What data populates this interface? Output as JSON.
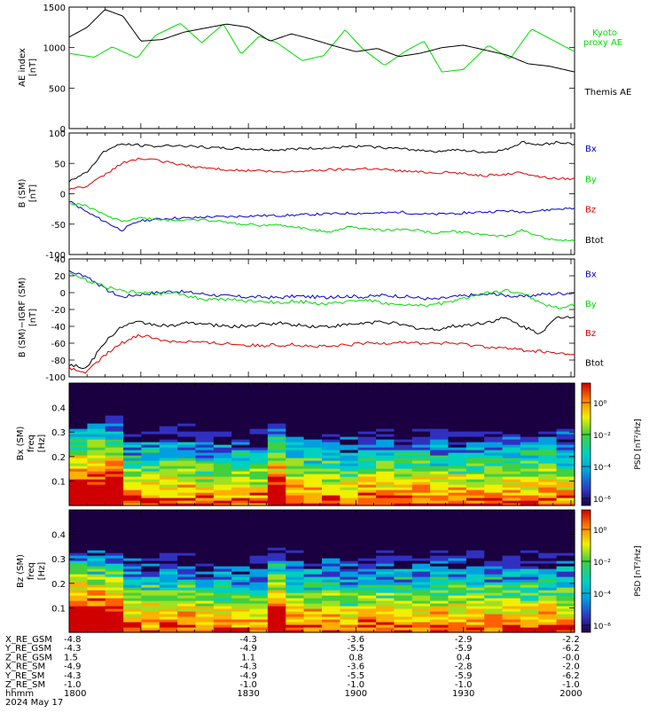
{
  "chart_data": [
    {
      "type": "line",
      "ylabel": "AE index [nT]",
      "ylim": [
        0,
        1500
      ],
      "yticks": [
        "1500",
        "1000",
        "500",
        "0"
      ],
      "series": [
        {
          "name": "Kyoto proxy AE",
          "color": "#00dd00",
          "x": [
            "17:40",
            "17:47",
            "17:52",
            "17:59",
            "18:04",
            "18:11",
            "18:17",
            "18:23",
            "18:28",
            "18:33",
            "18:38",
            "18:45",
            "18:51",
            "18:57",
            "19:02",
            "19:08",
            "19:14",
            "19:19",
            "19:24",
            "19:30",
            "19:37",
            "19:43",
            "19:49",
            "19:55",
            "20:01"
          ],
          "values": [
            930,
            880,
            1010,
            870,
            1150,
            1300,
            1060,
            1290,
            920,
            1140,
            1060,
            840,
            900,
            1220,
            980,
            780,
            960,
            1080,
            700,
            730,
            1030,
            860,
            1230,
            1090,
            950
          ]
        },
        {
          "name": "Themis AE",
          "color": "#000000",
          "x": [
            "17:40",
            "17:45",
            "17:50",
            "17:55",
            "18:00",
            "18:06",
            "18:12",
            "18:18",
            "18:24",
            "18:30",
            "18:36",
            "18:42",
            "18:48",
            "18:54",
            "19:00",
            "19:06",
            "19:12",
            "19:18",
            "19:24",
            "19:30",
            "19:36",
            "19:42",
            "19:48",
            "19:54",
            "20:01"
          ],
          "values": [
            1130,
            1250,
            1470,
            1390,
            1080,
            1100,
            1190,
            1240,
            1290,
            1250,
            1080,
            1170,
            1100,
            1020,
            950,
            990,
            890,
            930,
            1000,
            1030,
            970,
            910,
            800,
            770,
            700
          ]
        }
      ]
    },
    {
      "type": "line",
      "ylabel": "B (SM) [nT]",
      "ylim": [
        -100,
        100
      ],
      "yticks": [
        "100",
        "50",
        "0",
        "-50",
        "-100"
      ],
      "series": [
        {
          "name": "Bx",
          "color": "#0000cc",
          "values": [
            -12,
            -30,
            -45,
            -60,
            -45,
            -42,
            -40,
            -40,
            -38,
            -38,
            -37,
            -36,
            -36,
            -35,
            -34,
            -33,
            -32,
            -32,
            -32,
            -30,
            -33,
            -34,
            -32,
            -31,
            -30,
            -28,
            -30,
            -28,
            -25,
            -24
          ]
        },
        {
          "name": "By",
          "color": "#00dd00",
          "values": [
            -15,
            -20,
            -35,
            -45,
            -40,
            -42,
            -44,
            -42,
            -44,
            -47,
            -50,
            -52,
            -52,
            -55,
            -60,
            -62,
            -55,
            -57,
            -60,
            -58,
            -60,
            -65,
            -62,
            -65,
            -68,
            -70,
            -60,
            -70,
            -78,
            -77
          ]
        },
        {
          "name": "Bz",
          "color": "#dd0000",
          "values": [
            8,
            12,
            30,
            50,
            58,
            55,
            50,
            45,
            42,
            40,
            38,
            38,
            35,
            37,
            38,
            40,
            40,
            42,
            40,
            38,
            36,
            35,
            35,
            32,
            30,
            32,
            35,
            28,
            25,
            25
          ]
        },
        {
          "name": "Btot",
          "color": "#000000",
          "values": [
            20,
            35,
            70,
            82,
            80,
            78,
            80,
            78,
            76,
            75,
            74,
            73,
            72,
            74,
            75,
            75,
            77,
            78,
            76,
            74,
            72,
            70,
            72,
            70,
            68,
            72,
            85,
            80,
            85,
            82
          ]
        }
      ],
      "legend": [
        "Bx",
        "By",
        "Bz",
        "Btot"
      ]
    },
    {
      "type": "line",
      "ylabel": "B (SM)-IGRF (SM) [nT]",
      "ylim": [
        -100,
        40
      ],
      "yticks": [
        "40",
        "20",
        "0",
        "-20",
        "-40",
        "-60",
        "-80",
        "-100"
      ],
      "series": [
        {
          "name": "Bx",
          "color": "#0000cc",
          "values": [
            25,
            20,
            5,
            -5,
            -2,
            0,
            2,
            0,
            -2,
            -4,
            -5,
            -5,
            -6,
            -4,
            -5,
            -6,
            -4,
            -5,
            -3,
            -4,
            -6,
            -8,
            -5,
            -3,
            -2,
            -3,
            -5,
            -2,
            -1,
            0
          ]
        },
        {
          "name": "By",
          "color": "#00dd00",
          "values": [
            22,
            15,
            8,
            2,
            0,
            -2,
            0,
            -5,
            -8,
            -8,
            -10,
            -10,
            -12,
            -10,
            -12,
            -14,
            -10,
            -8,
            -12,
            -15,
            -15,
            -14,
            -10,
            -5,
            0,
            2,
            0,
            -12,
            -18,
            -15
          ]
        },
        {
          "name": "Bz",
          "color": "#dd0000",
          "values": [
            -90,
            -95,
            -75,
            -60,
            -50,
            -55,
            -58,
            -58,
            -60,
            -60,
            -62,
            -63,
            -62,
            -62,
            -64,
            -64,
            -62,
            -60,
            -60,
            -58,
            -60,
            -60,
            -60,
            -62,
            -64,
            -66,
            -68,
            -70,
            -72,
            -74
          ]
        },
        {
          "name": "Btot",
          "color": "#000000",
          "values": [
            -85,
            -90,
            -60,
            -40,
            -35,
            -38,
            -40,
            -35,
            -38,
            -40,
            -40,
            -38,
            -36,
            -38,
            -40,
            -40,
            -38,
            -36,
            -34,
            -38,
            -42,
            -44,
            -40,
            -38,
            -35,
            -30,
            -40,
            -48,
            -30,
            -28
          ]
        }
      ],
      "legend": [
        "Bx",
        "By",
        "Bz",
        "Btot"
      ]
    },
    {
      "type": "heatmap",
      "ylabel": "Bx (SM) freq [Hz]",
      "ylim": [
        0,
        0.5
      ],
      "yticks": [
        "0.4",
        "0.3",
        "0.2",
        "0.1"
      ],
      "colorbar_label": "PSD [nT²/Hz]",
      "colorbar_ticks": [
        "10⁰",
        "10⁻²",
        "10⁻⁴",
        "10⁻⁶"
      ]
    },
    {
      "type": "heatmap",
      "ylabel": "Bz (SM) freq [Hz]",
      "ylim": [
        0,
        0.5
      ],
      "yticks": [
        "0.4",
        "0.3",
        "0.2",
        "0.1"
      ],
      "colorbar_label": "PSD [nT²/Hz]",
      "colorbar_ticks": [
        "10⁰",
        "10⁻²",
        "10⁻⁴",
        "10⁻⁶"
      ]
    }
  ],
  "panels": {
    "ae": {
      "ylabel_1": "AE index",
      "ylabel_2": "[nT]",
      "legend_kyoto_1": "Kyoto",
      "legend_kyoto_2": "proxy AE",
      "legend_themis": "Themis AE"
    },
    "bsm": {
      "ylabel_1": "B (SM)",
      "ylabel_2": "[nT]"
    },
    "bdiff": {
      "ylabel_1": "B (SM)−IGRF (SM)",
      "ylabel_2": "[nT]"
    },
    "bx_spec": {
      "ylabel_1": "Bx (SM)",
      "ylabel_2": "freq",
      "ylabel_3": "[Hz]",
      "cb_label": "PSD [nT²/Hz]"
    },
    "bz_spec": {
      "ylabel_1": "Bz (SM)",
      "ylabel_2": "freq",
      "ylabel_3": "[Hz]",
      "cb_label": "PSD [nT²/Hz]"
    }
  },
  "ephemeris": {
    "rows": [
      {
        "label": "X_RE_GSM",
        "values": [
          "-4.8",
          "-4.3",
          "-3.6",
          "-2.9",
          "-2.2"
        ]
      },
      {
        "label": "Y_RE_GSM",
        "values": [
          "-4.3",
          "-4.9",
          "-5.5",
          "-5.9",
          "-6.2"
        ]
      },
      {
        "label": "Z_RE_GSM",
        "values": [
          "1.5",
          "1.1",
          "0.8",
          "0.4",
          "-0.0"
        ]
      },
      {
        "label": "X_RE_SM",
        "values": [
          "-4.9",
          "-4.3",
          "-3.6",
          "-2.8",
          "-2.0"
        ]
      },
      {
        "label": "Y_RE_SM",
        "values": [
          "-4.3",
          "-4.9",
          "-5.5",
          "-5.9",
          "-6.2"
        ]
      },
      {
        "label": "Z_RE_SM",
        "values": [
          "-1.0",
          "-1.0",
          "-1.0",
          "-1.0",
          "-1.0"
        ]
      },
      {
        "label": "hhmm",
        "values": [
          "1800",
          "1830",
          "1900",
          "1930",
          "2000"
        ]
      }
    ],
    "date": "2024 May 17"
  }
}
